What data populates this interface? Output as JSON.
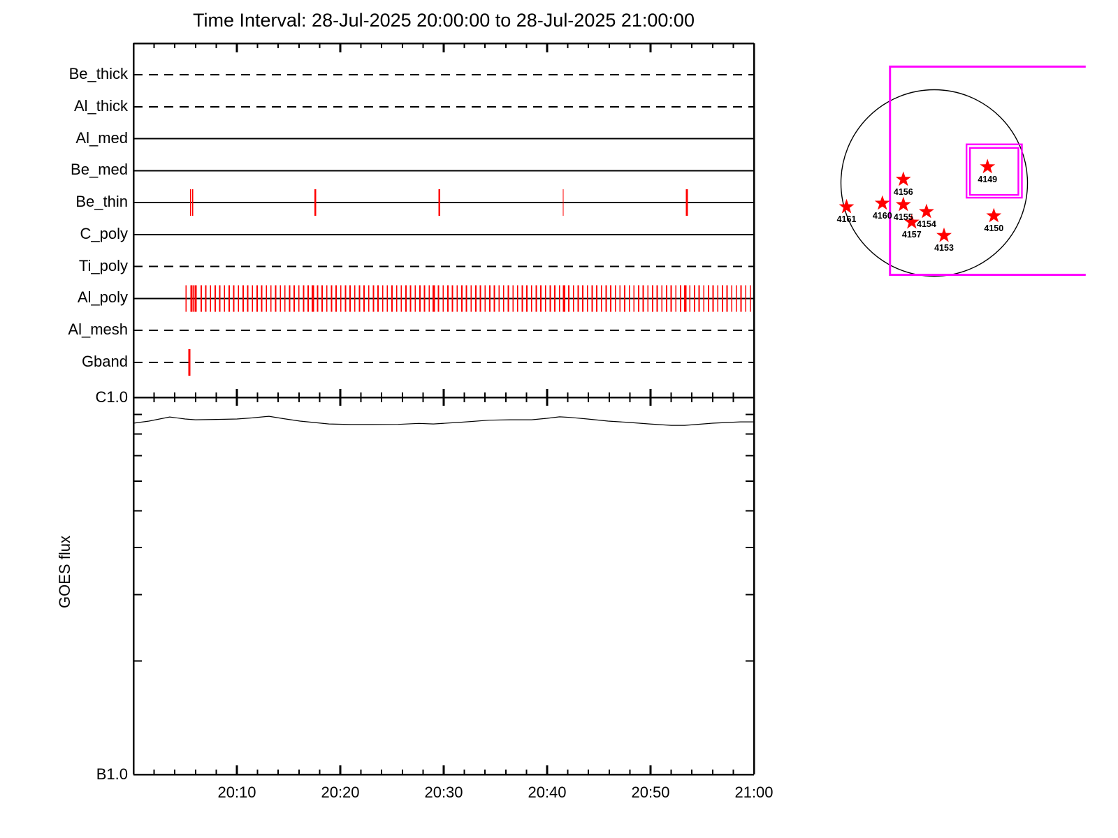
{
  "title": "Time Interval: 28-Jul-2025 20:00:00 to 28-Jul-2025 21:00:00",
  "colors": {
    "axis": "#000000",
    "exposure_tick": "#ff0000",
    "fov_box": "#ff00ff",
    "star": "#ff0000",
    "background": "#ffffff"
  },
  "chart_data": [
    {
      "id": "filter_exposure_timeline",
      "type": "timeline",
      "x_range_minutes": [
        0,
        60
      ],
      "x_minor_tick_minutes": 2,
      "x_major_tick_minutes": 10,
      "rows": [
        {
          "name": "Be_thick",
          "line_style": "dashed",
          "exposures": []
        },
        {
          "name": "Al_thick",
          "line_style": "dashed",
          "exposures": []
        },
        {
          "name": "Al_med",
          "line_style": "solid",
          "exposures": []
        },
        {
          "name": "Be_med",
          "line_style": "solid",
          "exposures": []
        },
        {
          "name": "Be_thin",
          "line_style": "solid",
          "exposures": [
            {
              "t": 5.54,
              "w": 1.5
            },
            {
              "t": 5.74,
              "w": 1.5
            },
            {
              "t": 17.59,
              "w": 2.5
            },
            {
              "t": 29.57,
              "w": 2.5
            },
            {
              "t": 41.55,
              "w": 1
            },
            {
              "t": 53.53,
              "w": 3
            }
          ]
        },
        {
          "name": "C_poly",
          "line_style": "solid",
          "exposures": []
        },
        {
          "name": "Ti_poly",
          "line_style": "dashed",
          "exposures": []
        },
        {
          "name": "Al_poly",
          "line_style": "solid",
          "exposures": [
            {
              "t": 5.07,
              "w": 1.5
            },
            {
              "t": 5.61,
              "w": 3
            },
            {
              "t": 5.81,
              "w": 1.5
            },
            {
              "t": 5.95,
              "w": 1.5
            },
            {
              "t": 6.08,
              "w": 1.5
            }
          ],
          "exposure_series": {
            "start_min": 6.55,
            "step_min": 0.45,
            "count": 119,
            "width": 1.8
          },
          "wide_marks_min": [
            17.35,
            29.05,
            41.65,
            53.35
          ],
          "wide_width": 3.5
        },
        {
          "name": "Al_mesh",
          "line_style": "dashed",
          "exposures": []
        },
        {
          "name": "Gband",
          "line_style": "dashed",
          "exposures": [
            {
              "t": 5.4,
              "w": 3
            }
          ]
        }
      ]
    },
    {
      "id": "goes_flux",
      "type": "line",
      "ylabel": "GOES flux",
      "y_top_label": "C1.0",
      "y_bottom_label": "B1.0",
      "y_scale": "log",
      "y_top_flux_wm2": 1e-06,
      "y_bottom_flux_wm2": 1e-07,
      "y_minor_tick_flux_b_units": [
        9,
        8,
        7,
        6,
        5,
        4,
        3,
        2
      ],
      "x_tick_labels": [
        "20:10",
        "20:20",
        "20:30",
        "20:40",
        "20:50",
        "21:00"
      ],
      "x_tick_minutes": [
        10,
        20,
        30,
        40,
        50,
        60
      ],
      "x_minutes": [
        0,
        1.5,
        3.5,
        5,
        6,
        8,
        10,
        11.5,
        13.1,
        14.5,
        16.1,
        18.9,
        21,
        23,
        25.6,
        27.6,
        29,
        31.7,
        34.4,
        36.4,
        38.5,
        40,
        41.2,
        42.2,
        43.9,
        45.9,
        47.9,
        49.9,
        52,
        53.3,
        56,
        58.7,
        60
      ],
      "flux_b_units": [
        8.54,
        8.65,
        8.87,
        8.76,
        8.72,
        8.74,
        8.76,
        8.82,
        8.91,
        8.78,
        8.65,
        8.5,
        8.47,
        8.47,
        8.48,
        8.53,
        8.5,
        8.59,
        8.7,
        8.72,
        8.72,
        8.8,
        8.88,
        8.85,
        8.76,
        8.65,
        8.58,
        8.5,
        8.43,
        8.43,
        8.54,
        8.61,
        8.61
      ]
    },
    {
      "id": "solar_disk_map",
      "type": "scatter",
      "marker": "star",
      "active_regions": [
        {
          "noaa": "4161",
          "x_r": -0.94,
          "y_r": 0.256
        },
        {
          "noaa": "4160",
          "x_r": -0.556,
          "y_r": 0.218
        },
        {
          "noaa": "4156",
          "x_r": -0.331,
          "y_r": -0.038
        },
        {
          "noaa": "4155",
          "x_r": -0.331,
          "y_r": 0.233
        },
        {
          "noaa": "4154",
          "x_r": -0.083,
          "y_r": 0.308
        },
        {
          "noaa": "4157",
          "x_r": -0.241,
          "y_r": 0.421
        },
        {
          "noaa": "4153",
          "x_r": 0.105,
          "y_r": 0.564
        },
        {
          "noaa": "4149",
          "x_r": 0.571,
          "y_r": -0.173
        },
        {
          "noaa": "4150",
          "x_r": 0.639,
          "y_r": 0.353
        }
      ],
      "fov_outer_box": {
        "x1_r": -0.474,
        "y1_r": -1.248,
        "x2_r": 1.624,
        "y2_r": 0.985,
        "open_side": "right"
      },
      "fov_inner_boxes": [
        {
          "x1_r": 0.346,
          "y1_r": -0.414,
          "x2_r": 0.94,
          "y2_r": 0.158
        },
        {
          "x1_r": 0.383,
          "y1_r": -0.376,
          "x2_r": 0.902,
          "y2_r": 0.128
        }
      ]
    }
  ]
}
